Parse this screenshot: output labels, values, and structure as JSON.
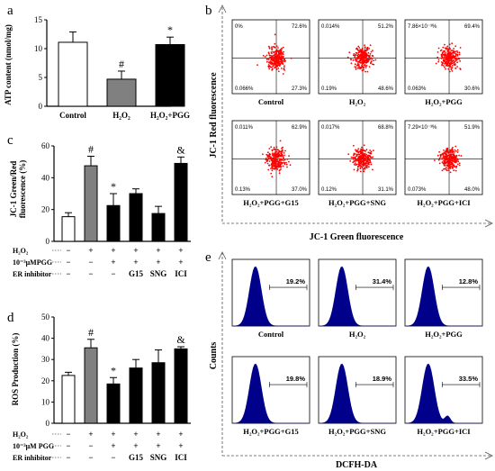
{
  "panels": {
    "a": {
      "letter": "a",
      "chart_data": {
        "type": "bar",
        "ylabel": "ATP content (nmol/mg)",
        "ylim": [
          0,
          15
        ],
        "yticks": [
          "0",
          "5",
          "10",
          "15"
        ],
        "yticks_values": [
          0,
          5,
          10,
          15
        ],
        "categories": [
          "Control",
          "H₂O₂",
          "H₂O₂+PGG"
        ],
        "values": [
          11.1,
          4.7,
          10.7
        ],
        "errors": [
          1.8,
          1.4,
          1.3
        ],
        "fills": [
          "#ffffff",
          "#808080",
          "#000000"
        ],
        "marks": [
          "",
          "#",
          "*"
        ]
      }
    },
    "c": {
      "letter": "c",
      "chart_data": {
        "type": "bar",
        "ylabel_line1": "JC-1 Green/Red",
        "ylabel_line2": "fluorescence (%)",
        "ylim": [
          0,
          60
        ],
        "yticks": [
          "0",
          "20",
          "40",
          "60"
        ],
        "yticks_values": [
          0,
          20,
          40,
          60
        ],
        "values": [
          15.5,
          47.5,
          22.5,
          30.0,
          17.5,
          49.0
        ],
        "errors": [
          2.5,
          6.0,
          7.5,
          3.0,
          4.5,
          4.0
        ],
        "fills": [
          "#ffffff",
          "#808080",
          "#000000",
          "#000000",
          "#000000",
          "#000000"
        ],
        "marks": [
          "",
          "#",
          "*",
          "",
          "",
          "&"
        ]
      },
      "rows": [
        {
          "label": "H₂O₂",
          "cells": [
            "−",
            "+",
            "+",
            "+",
            "+",
            "+"
          ]
        },
        {
          "label": "10⁻³μMPGG",
          "cells": [
            "−",
            "−",
            "+",
            "+",
            "+",
            "+"
          ]
        },
        {
          "label": "ER inhibitor",
          "cells": [
            "−",
            "−",
            "−",
            "G15",
            "SNG",
            "ICI"
          ]
        }
      ]
    },
    "d": {
      "letter": "d",
      "chart_data": {
        "type": "bar",
        "ylabel": "ROS Production (%)",
        "ylim": [
          0,
          50
        ],
        "yticks": [
          "0",
          "10",
          "20",
          "30",
          "40",
          "50"
        ],
        "yticks_values": [
          0,
          10,
          20,
          30,
          40,
          50
        ],
        "values": [
          22.5,
          35.5,
          18.5,
          26.0,
          28.5,
          35.0
        ],
        "errors": [
          1.5,
          4.0,
          3.0,
          4.0,
          6.0,
          1.0
        ],
        "fills": [
          "#ffffff",
          "#808080",
          "#000000",
          "#000000",
          "#000000",
          "#000000"
        ],
        "marks": [
          "",
          "#",
          "*",
          "",
          "",
          "&"
        ]
      },
      "rows": [
        {
          "label": "H₂O₂",
          "cells": [
            "−",
            "+",
            "+",
            "+",
            "+",
            "+"
          ]
        },
        {
          "label": "10⁻³μM PGG",
          "cells": [
            "−",
            "−",
            "+",
            "+",
            "+",
            "+"
          ]
        },
        {
          "label": "ER inhibitor",
          "cells": [
            "−",
            "−",
            "−",
            "G15",
            "SNG",
            "ICI"
          ]
        }
      ]
    },
    "b": {
      "letter": "b",
      "ylabel": "JC-1 Red fluorescence",
      "xlabel": "JC-1 Green fluorescence",
      "plots": [
        {
          "title": "Control",
          "q": [
            "0%",
            "72.6%",
            "0.066%",
            "27.3%"
          ]
        },
        {
          "title": "H₂O₂",
          "q": [
            "0.014%",
            "51.2%",
            "0.19%",
            "48.6%"
          ]
        },
        {
          "title": "H₂O₂+PGG",
          "q": [
            "7.86×10⁻³%",
            "69.4%",
            "0.063%",
            "30.6%"
          ]
        },
        {
          "title": "H₂O₂+PGG+G15",
          "q": [
            "0.011%",
            "62.9%",
            "0.13%",
            "37.0%"
          ]
        },
        {
          "title": "H₂O₂+PGG+SNG",
          "q": [
            "0.017%",
            "68.8%",
            "0.12%",
            "31.1%"
          ]
        },
        {
          "title": "H₂O₂+PGG+ICI",
          "q": [
            "7.29×10⁻³%",
            "51.9%",
            "0.073%",
            "48.0%"
          ]
        }
      ],
      "dot_color": "#ff0000"
    },
    "e": {
      "letter": "e",
      "ylabel": "Counts",
      "xlabel": "DCFH-DA",
      "plots": [
        {
          "title": "Control",
          "pct": "19.2%"
        },
        {
          "title": "H₂O₂",
          "pct": "31.4%"
        },
        {
          "title": "H₂O₂+PGG",
          "pct": "12.8%"
        },
        {
          "title": "H₂O₂+PGG+G15",
          "pct": "19.8%"
        },
        {
          "title": "H₂O₂+PGG+SNG",
          "pct": "18.9%"
        },
        {
          "title": "H₂O₂+PGG+ICI",
          "pct": "33.5%"
        }
      ],
      "fill_color": "#00008b"
    }
  }
}
